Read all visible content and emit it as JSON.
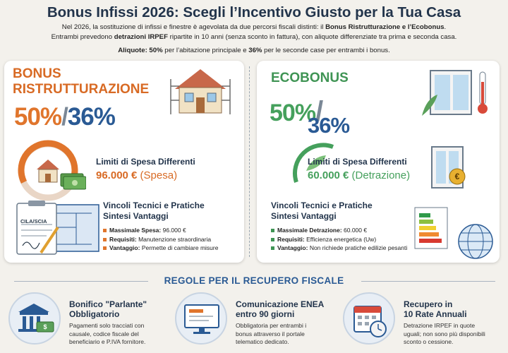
{
  "header": {
    "title": "Bonus Infissi 2026: Scegli l’Incentivo Giusto per la Tua Casa",
    "intro_l1_a": "Nel 2026, la sostituzione di infissi e finestre è agevolata da due percorsi fiscali distinti: il ",
    "intro_l1_b": "Bonus Ristrutturazione e l’Ecobonus",
    "intro_l1_c": ".",
    "intro_l2_a": "Entrambi prevedono ",
    "intro_l2_b": "detrazioni IRPEF",
    "intro_l2_c": " ripartite in 10 anni (senza sconto in fattura), con aliquote differenziate tra prima e seconda casa.",
    "rates_a": "Aliquote: 50%",
    "rates_b": " per l’abitazione principale e ",
    "rates_c": "36%",
    "rates_d": " per le seconde case per entrambi i bonus."
  },
  "left": {
    "title_l1": "Bonus",
    "title_l2": "Ristrutturazione",
    "pct_a": "50%",
    "pct_sep": "/",
    "pct_b": "36%",
    "limits_title": "Limiti di Spesa Differenti",
    "amount": "96.000 €",
    "amount_note": " (Spesa)",
    "vincoli_l1": "Vincoli Tecnici e Pratiche",
    "vincoli_l2": "Sintesi Vantaggi",
    "doc_label": "CILA/SCIA",
    "bullets": [
      {
        "k": "Massimale Spesa:",
        "v": " 96.000 €"
      },
      {
        "k": "Requisiti:",
        "v": " Manutenzione straordinaria"
      },
      {
        "k": "Vantaggio:",
        "v": " Permette di cambiare misure"
      }
    ]
  },
  "right": {
    "title": "Ecobonus",
    "pct_a": "50%",
    "pct_sep": "/",
    "pct_b": "36%",
    "limits_title": "Limiti di Spesa Differenti",
    "amount": "60.000 €",
    "amount_note": " (Detrazione)",
    "vincoli_l1": "Vincoli Tecnici e Pratiche",
    "vincoli_l2": "Sintesi Vantaggi",
    "bullets": [
      {
        "k": "Massimale Detrazione:",
        "v": " 60.000 €"
      },
      {
        "k": "Requisiti:",
        "v": " Efficienza energetica (Uw)"
      },
      {
        "k": "Vantaggio:",
        "v": " Non richiede pratiche edilizie pesanti"
      }
    ]
  },
  "rules": {
    "title": "Regole per il Recupero Fiscale",
    "items": [
      {
        "h1": "Bonifico \"Parlante\"",
        "h2": "Obbligatorio",
        "t1": "Pagamenti solo tracciati con",
        "t2": "causale, codice fiscale del",
        "t3": "beneficiario e P.IVA fornitore.",
        "icon": "bank-icon"
      },
      {
        "h1": "Comunicazione ENEA",
        "h2": "entro 90 giorni",
        "t1": "Obbligatoria per entrambi i",
        "t2": "bonus attraverso il portale",
        "t3": "telematico dedicato.",
        "icon": "computer-icon"
      },
      {
        "h1": "Recupero in",
        "h2": "10 Rate Annuali",
        "t1": "Detrazione IRPEF in quote",
        "t2": "uguali; non sono più disponibili",
        "t3": "sconto o cessione.",
        "icon": "calendar-icon"
      }
    ]
  },
  "colors": {
    "orange": "#e0752c",
    "green": "#45a05c",
    "blue": "#2a5a94",
    "navy": "#22344b"
  }
}
